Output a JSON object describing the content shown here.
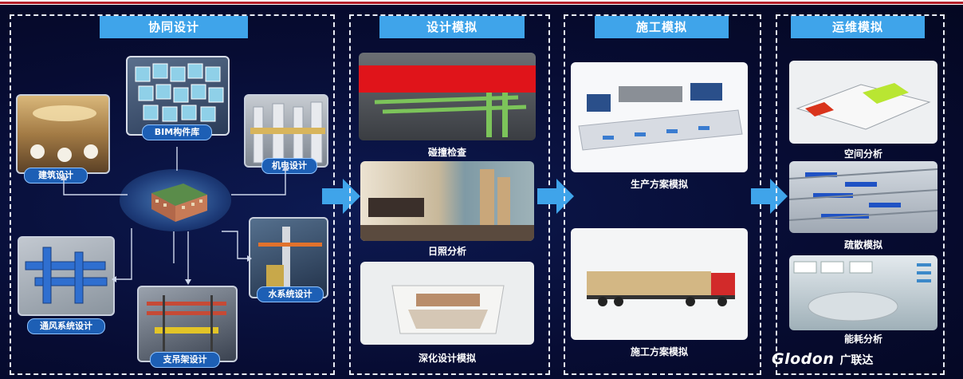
{
  "sections": {
    "collab": {
      "title": "协同设计"
    },
    "design": {
      "title": "设计模拟"
    },
    "construction": {
      "title": "施工模拟"
    },
    "operation": {
      "title": "运维模拟"
    }
  },
  "collab_nodes": {
    "bim_library": "BIM构件库",
    "architecture": "建筑设计",
    "mep": "机电设计",
    "ventilation": "通风系统设计",
    "support": "支吊架设计",
    "water": "水系统设计"
  },
  "design_items": [
    "碰撞检查",
    "日照分析",
    "深化设计模拟"
  ],
  "construction_items": [
    "生产方案模拟",
    "施工方案模拟"
  ],
  "operation_items": [
    "空间分析",
    "疏散模拟",
    "能耗分析"
  ],
  "brand": {
    "logo": "Glodon",
    "cn_name": "广联达"
  },
  "colors": {
    "title_bar": "#3fa4ea",
    "arrow": "#3fa4ea",
    "background": "#070c33",
    "pill": "#1d5fb5"
  }
}
